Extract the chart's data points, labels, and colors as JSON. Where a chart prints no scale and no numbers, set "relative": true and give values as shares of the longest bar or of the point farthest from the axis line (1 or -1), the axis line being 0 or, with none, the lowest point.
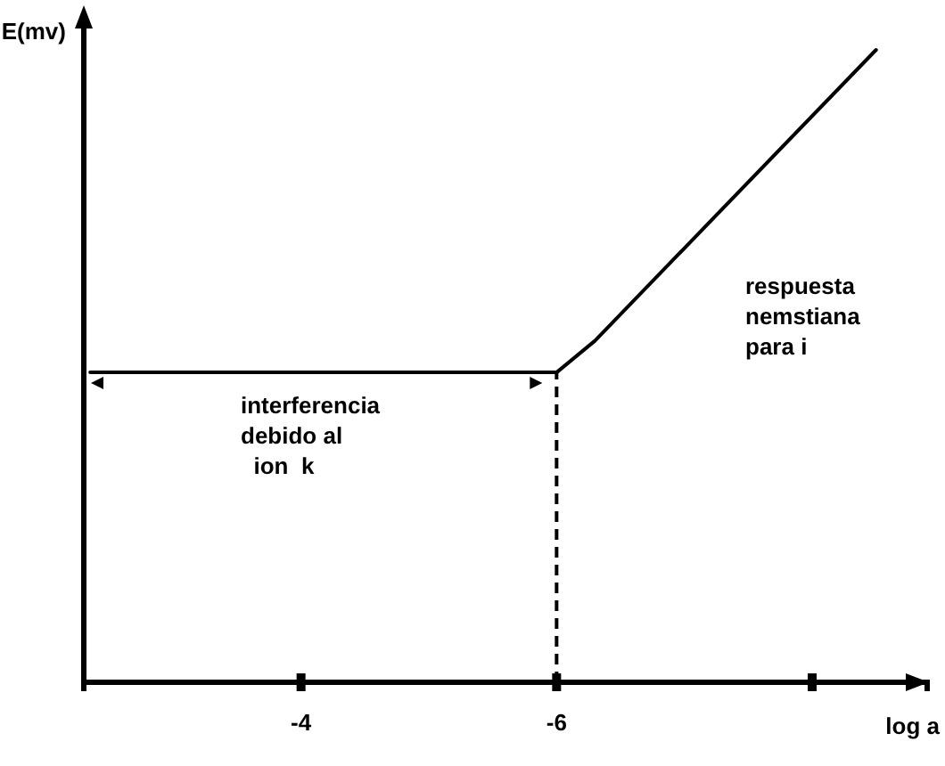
{
  "chart_data": {
    "type": "line",
    "relative": true,
    "xlabel": "log a",
    "ylabel": "E(mv)",
    "xlim": [
      -2.3,
      -8.9
    ],
    "xticks": [
      -4,
      -6,
      {
        "value": -8,
        "label": null
      }
    ],
    "series": [
      {
        "color": "#000000",
        "x": [
          -2.35,
          -6,
          -6.3,
          -8.5
        ],
        "values": [
          0.49,
          0.49,
          0.54,
          1
        ]
      }
    ],
    "ref_lines": [
      {
        "axis": "x",
        "value": -6,
        "line_style": "dashed",
        "color": "#000000"
      }
    ],
    "annotations": [
      "interferencia\ndebido al\n  ion  k",
      "respuesta\nnemstiana\npara i"
    ],
    "grid": false,
    "marker": "none",
    "line_style": "solid"
  }
}
